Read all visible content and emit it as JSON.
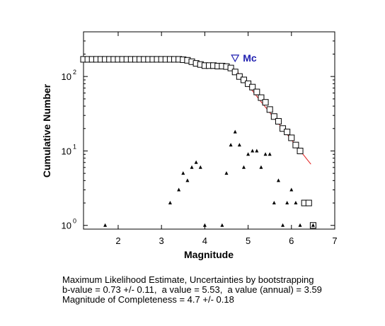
{
  "chart_data": {
    "type": "scatter",
    "xlabel": "Magnitude",
    "ylabel": "Cumulative Number",
    "xlim": [
      1.2,
      7
    ],
    "ylim_log10": [
      -0.05,
      2.6
    ],
    "yscale": "log",
    "x_ticks": [
      2,
      3,
      4,
      5,
      6,
      7
    ],
    "y_ticks": [
      {
        "value": 1,
        "base": "10",
        "exp": "0"
      },
      {
        "value": 10,
        "base": "10",
        "exp": "1"
      },
      {
        "value": 100,
        "base": "10",
        "exp": "2"
      }
    ],
    "grid": false,
    "series": [
      {
        "marker": "square",
        "x": [
          1.2,
          1.3,
          1.4,
          1.5,
          1.6,
          1.7,
          1.8,
          1.9,
          2.0,
          2.1,
          2.2,
          2.3,
          2.4,
          2.5,
          2.6,
          2.7,
          2.8,
          2.9,
          3.0,
          3.1,
          3.2,
          3.3,
          3.4,
          3.5,
          3.6,
          3.7,
          3.8,
          3.9,
          4.0,
          4.1,
          4.2,
          4.3,
          4.4,
          4.5,
          4.6,
          4.7,
          4.8,
          4.9,
          5.0,
          5.1,
          5.2,
          5.3,
          5.4,
          5.5,
          5.6,
          5.7,
          5.8,
          5.9,
          6.0,
          6.1,
          6.2,
          6.3,
          6.4,
          6.5
        ],
        "y": [
          170,
          170,
          170,
          170,
          170,
          170,
          170,
          170,
          170,
          170,
          170,
          170,
          170,
          170,
          170,
          170,
          170,
          170,
          170,
          170,
          170,
          170,
          170,
          168,
          165,
          158,
          150,
          145,
          140,
          140,
          140,
          138,
          138,
          136,
          130,
          115,
          100,
          90,
          80,
          72,
          62,
          52,
          45,
          36,
          29,
          25,
          20,
          18,
          15,
          12,
          10,
          2,
          2,
          1
        ]
      },
      {
        "marker": "triangle",
        "x": [
          1.7,
          3.2,
          3.4,
          3.5,
          3.6,
          3.7,
          3.8,
          3.9,
          4.0,
          4.4,
          4.5,
          4.6,
          4.7,
          4.8,
          4.9,
          5.0,
          5.1,
          5.2,
          5.3,
          5.4,
          5.5,
          5.6,
          5.7,
          5.8,
          5.9,
          6.0,
          6.1,
          6.2,
          6.5
        ],
        "y": [
          1,
          2,
          3,
          5,
          4,
          6,
          7,
          6,
          1,
          1,
          5,
          12,
          18,
          12,
          6,
          9,
          10,
          10,
          6,
          9,
          9,
          2,
          4,
          1,
          2,
          3,
          2,
          1,
          1
        ]
      }
    ],
    "fit_line": {
      "x": [
        4.7,
        6.45
      ],
      "a_value": 5.53,
      "b_value": 0.73,
      "color": "#e11b1b"
    },
    "mc_marker": {
      "label": "Mc",
      "x": 4.7,
      "y": 170,
      "color": "#1f1fb0"
    }
  },
  "footer": {
    "line1": "Maximum Likelihood Estimate, Uncertainties by bootstrapping",
    "line2": "b-value = 0.73 +/- 0.11,  a value = 5.53,  a value (annual) = 3.59",
    "line3": "Magnitude of Completeness = 4.7 +/- 0.18"
  }
}
